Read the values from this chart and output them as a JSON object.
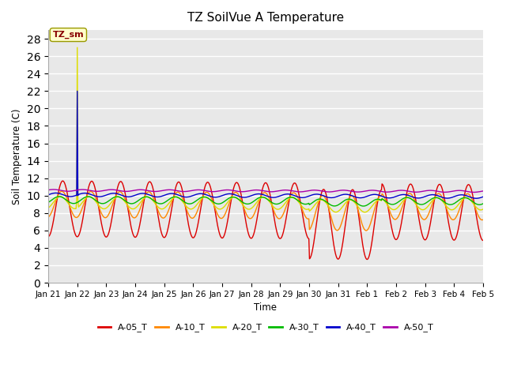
{
  "title": "TZ SoilVue A Temperature",
  "ylabel": "Soil Temperature (C)",
  "xlabel": "Time",
  "fig_bg_color": "#ffffff",
  "plot_bg_color": "#e8e8e8",
  "ylim": [
    0,
    29
  ],
  "yticks": [
    0,
    2,
    4,
    6,
    8,
    10,
    12,
    14,
    16,
    18,
    20,
    22,
    24,
    26,
    28
  ],
  "series": {
    "A-05_T": {
      "color": "#dd0000",
      "linewidth": 1.0
    },
    "A-10_T": {
      "color": "#ff8800",
      "linewidth": 1.0
    },
    "A-20_T": {
      "color": "#dddd00",
      "linewidth": 1.0
    },
    "A-30_T": {
      "color": "#00bb00",
      "linewidth": 1.0
    },
    "A-40_T": {
      "color": "#0000cc",
      "linewidth": 1.0
    },
    "A-50_T": {
      "color": "#aa00aa",
      "linewidth": 1.0
    }
  },
  "annotation_label": "TZ_sm",
  "annotation_color": "#880000",
  "annotation_bg": "#ffffcc",
  "annotation_border": "#999900",
  "n_days": 15,
  "points_per_day": 48,
  "x_tick_labels": [
    "Jan 21",
    "Jan 22",
    "Jan 23",
    "Jan 24",
    "Jan 25",
    "Jan 26",
    "Jan 27",
    "Jan 28",
    "Jan 29",
    "Jan 30",
    "Jan 31",
    "Feb 1",
    "Feb 2",
    "Feb 3",
    "Feb 4",
    "Feb 5"
  ]
}
